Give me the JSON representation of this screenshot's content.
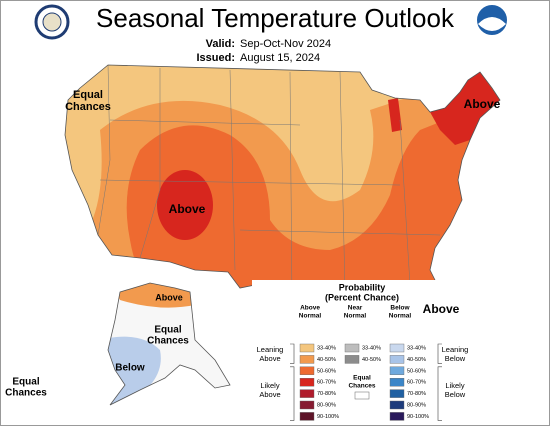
{
  "header": {
    "title": "Seasonal Temperature Outlook",
    "valid_label": "Valid:",
    "valid": "Sep-Oct-Nov 2024",
    "issued_label": "Issued:",
    "issued": "August 15, 2024"
  },
  "map_labels": [
    {
      "lines": [
        "Equal",
        "Chances"
      ]
    },
    {
      "lines": [
        "Above"
      ]
    },
    {
      "lines": [
        "Above"
      ]
    },
    {
      "lines": [
        "Above"
      ]
    },
    {
      "lines": [
        "Above"
      ]
    },
    {
      "lines": [
        "Equal",
        "Chances"
      ]
    },
    {
      "lines": [
        "Below"
      ]
    },
    {
      "lines": [
        "Equal",
        "Chances"
      ]
    }
  ],
  "legend": {
    "title": [
      "Probability",
      "(Percent Chance)"
    ],
    "columns": [
      {
        "heading": [
          "Above",
          "Normal"
        ],
        "ranges": [
          "33-40%",
          "40-50%",
          "50-60%",
          "60-70%",
          "70-80%",
          "80-90%",
          "90-100%"
        ],
        "colors": [
          "#f4c67e",
          "#f29a4e",
          "#ee6a30",
          "#d7261e",
          "#b01c2c",
          "#861a30",
          "#5e1428"
        ]
      },
      {
        "heading": [
          "Near",
          "Normal"
        ],
        "ranges": [
          "33-40%",
          "40-50%"
        ],
        "colors": [
          "#bdbdbd",
          "#8c8c8c"
        ]
      },
      {
        "heading": [
          "Below",
          "Normal"
        ],
        "ranges": [
          "33-40%",
          "40-50%",
          "50-60%",
          "60-70%",
          "70-80%",
          "80-90%",
          "90-100%"
        ],
        "colors": [
          "#c9d8ee",
          "#a9c4e8",
          "#6fa9dd",
          "#3c86c8",
          "#2060a2",
          "#1d3b7c",
          "#2a1a5c"
        ]
      }
    ],
    "leaning_above": [
      "Leaning",
      "Above"
    ],
    "likely_above": [
      "Likely",
      "Above"
    ],
    "leaning_below": [
      "Leaning",
      "Below"
    ],
    "likely_below": [
      "Likely",
      "Below"
    ],
    "equal_chances": [
      "Equal",
      "Chances"
    ]
  }
}
